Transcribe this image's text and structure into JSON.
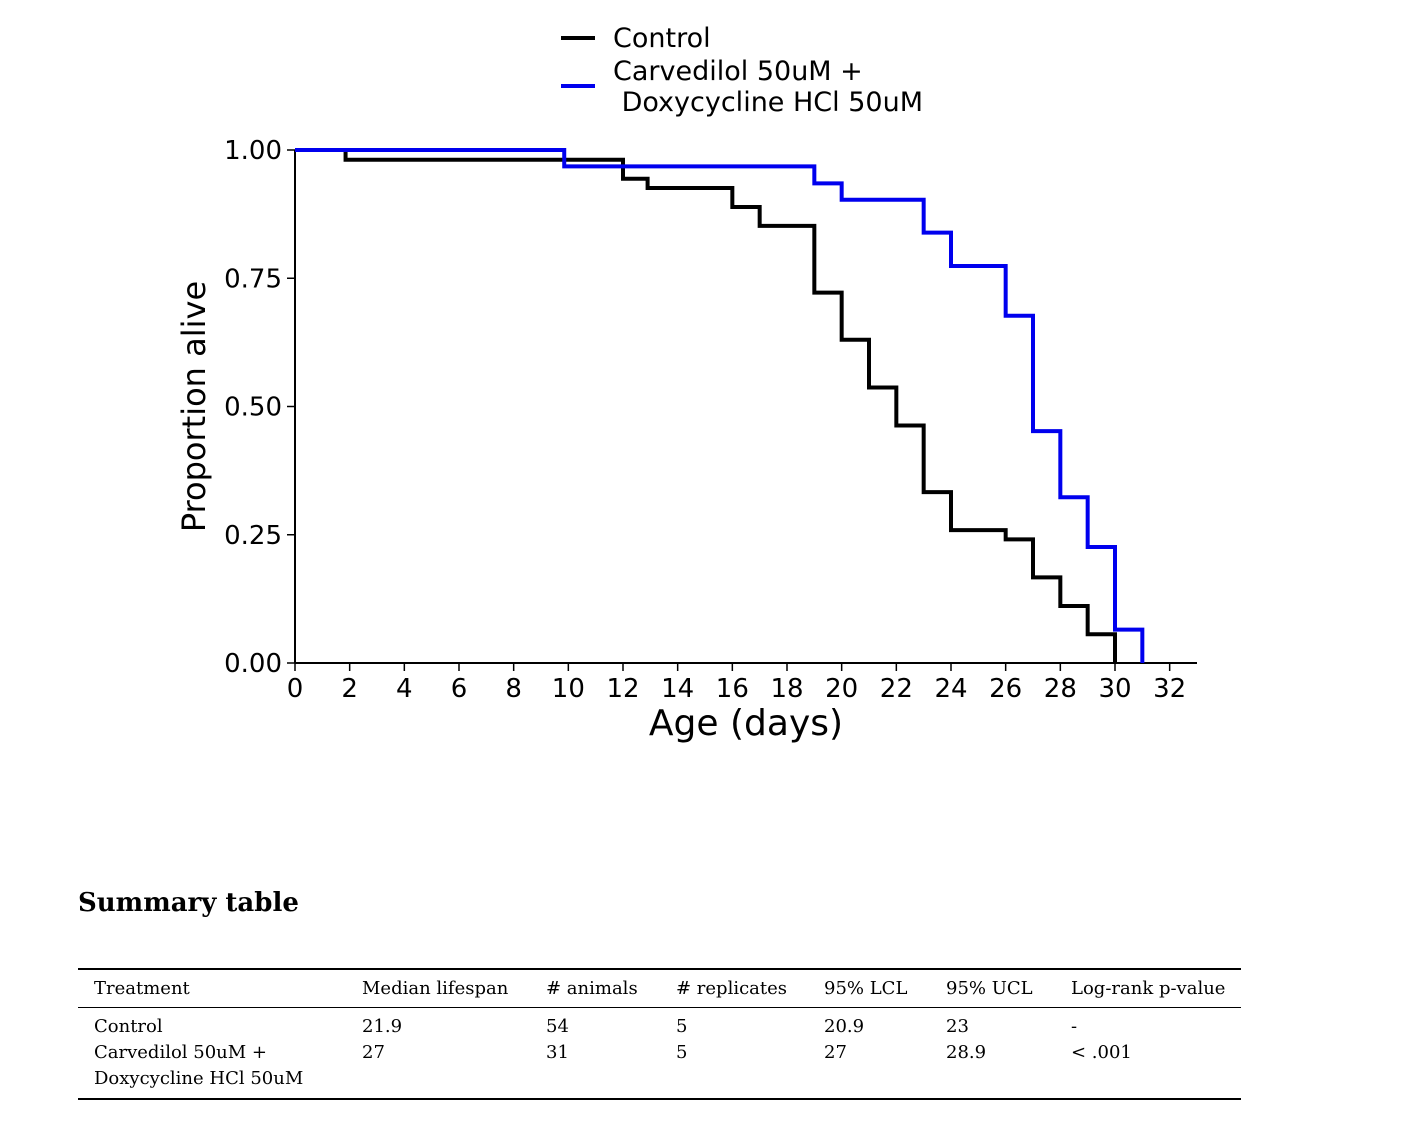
{
  "chart_data": {
    "type": "line",
    "step": true,
    "xlabel": "Age (days)",
    "ylabel": "Proportion alive",
    "xlim": [
      0,
      33
    ],
    "ylim": [
      0,
      1
    ],
    "x_ticks": [
      0,
      2,
      4,
      6,
      8,
      10,
      12,
      14,
      16,
      18,
      20,
      22,
      24,
      26,
      28,
      30,
      32
    ],
    "y_ticks": [
      "0.00",
      "0.25",
      "0.50",
      "0.75",
      "1.00"
    ],
    "grid": false,
    "legend_position": "top-center",
    "series": [
      {
        "name": "Control",
        "color": "#000000",
        "x": [
          0,
          1.85,
          12,
          12.9,
          16,
          17,
          19,
          20,
          21,
          22,
          23,
          24,
          26,
          27,
          28,
          29,
          30
        ],
        "y": [
          1.0,
          0.981,
          0.944,
          0.926,
          0.889,
          0.852,
          0.722,
          0.63,
          0.537,
          0.463,
          0.333,
          0.259,
          0.241,
          0.167,
          0.111,
          0.056,
          0.0
        ]
      },
      {
        "name": "Carvedilol 50uM +\n Doxycycline HCl 50uM",
        "color": "#0000ee",
        "x": [
          0,
          9.85,
          19,
          20,
          23,
          24,
          26,
          27,
          28,
          29,
          30,
          31
        ],
        "y": [
          1.0,
          0.968,
          0.935,
          0.903,
          0.839,
          0.774,
          0.677,
          0.452,
          0.323,
          0.226,
          0.065,
          0.0
        ]
      }
    ]
  },
  "summary": {
    "title": "Summary table",
    "headers": [
      "Treatment",
      "Median lifespan",
      "# animals",
      "# replicates",
      "95% LCL",
      "95% UCL",
      "Log-rank p-value"
    ],
    "rows": [
      [
        "Control",
        "21.9",
        "54",
        "5",
        "20.9",
        "23",
        "-"
      ],
      [
        "Carvedilol 50uM +\nDoxycycline HCl 50uM",
        "27",
        "31",
        "5",
        "27",
        "28.9",
        "< .001"
      ]
    ]
  }
}
